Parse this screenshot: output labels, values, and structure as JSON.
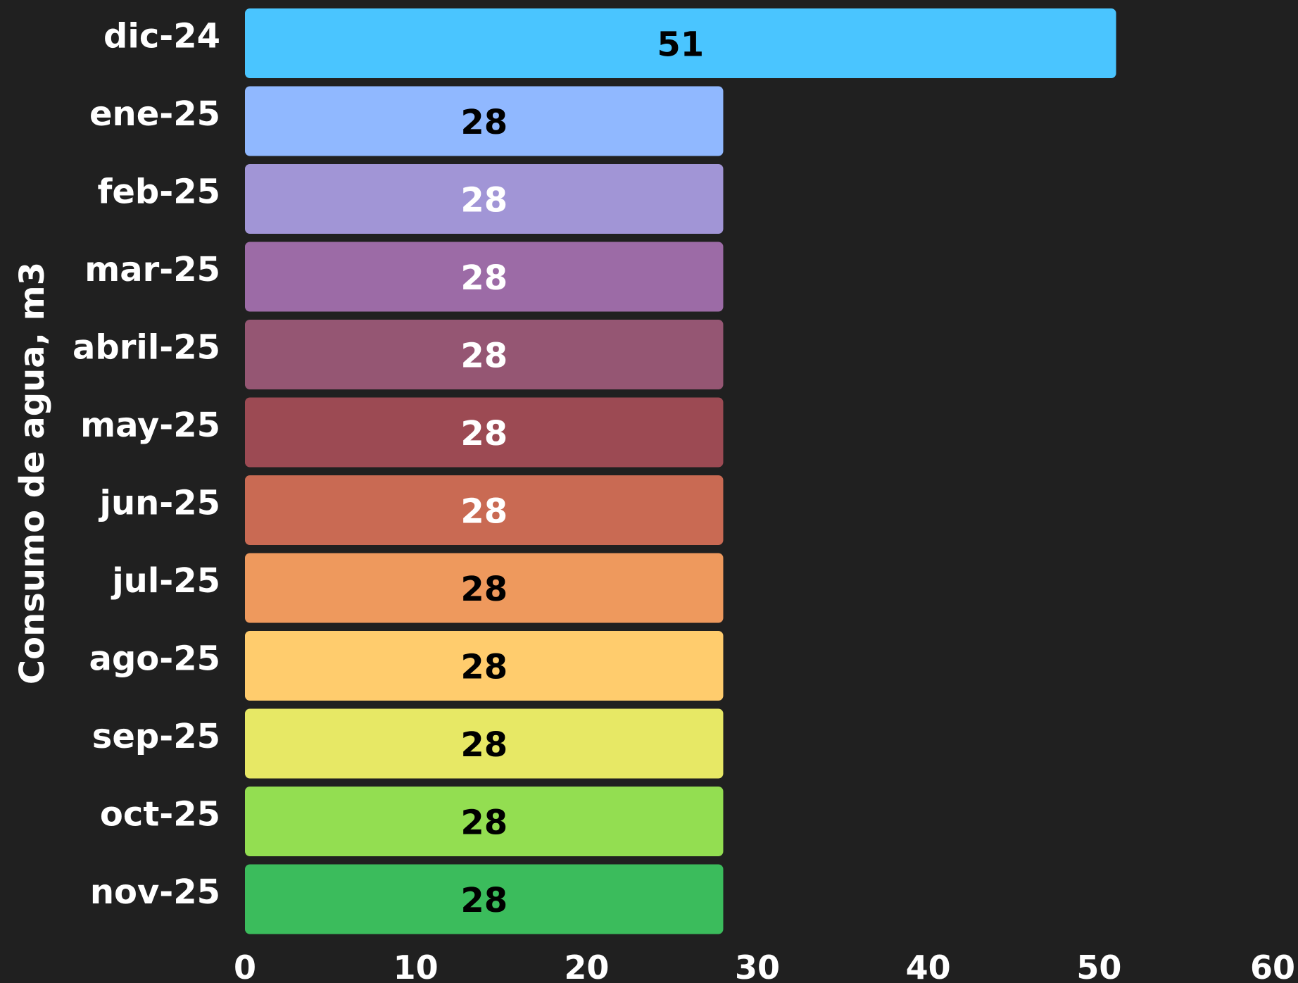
{
  "chart_data": {
    "type": "bar",
    "orientation": "horizontal",
    "categories": [
      "dic-24",
      "ene-25",
      "feb-25",
      "mar-25",
      "abril-25",
      "may-25",
      "jun-25",
      "jul-25",
      "ago-25",
      "sep-25",
      "oct-25",
      "nov-25"
    ],
    "values": [
      51,
      28,
      28,
      28,
      28,
      28,
      28,
      28,
      28,
      28,
      28,
      28
    ],
    "value_labels": [
      "51",
      "28",
      "28",
      "28",
      "28",
      "28",
      "28",
      "28",
      "28",
      "28",
      "28",
      "28"
    ],
    "colors": [
      "#4ac5ff",
      "#90b8ff",
      "#a195d6",
      "#9c6ba6",
      "#955673",
      "#9c4a53",
      "#c96a53",
      "#ee995d",
      "#ffcc6d",
      "#e7e865",
      "#93de51",
      "#3bbc5c"
    ],
    "label_colors": [
      "#000000",
      "#000000",
      "#ffffff",
      "#ffffff",
      "#ffffff",
      "#ffffff",
      "#ffffff",
      "#000000",
      "#000000",
      "#000000",
      "#000000",
      "#000000"
    ],
    "xlim": [
      0,
      60
    ],
    "xticks": [
      "0",
      "10",
      "20",
      "30",
      "40",
      "50",
      "60"
    ],
    "ylabel": "Consumo de agua, m3",
    "xlabel": "",
    "grid": false,
    "legend": "none",
    "background": "#202020"
  }
}
